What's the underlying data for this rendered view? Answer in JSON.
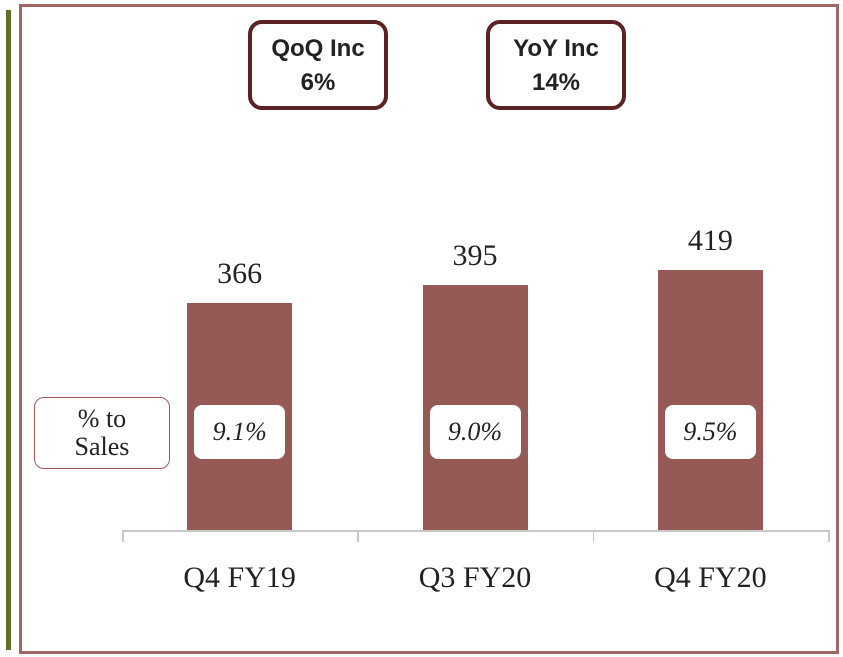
{
  "chart_data": {
    "type": "bar",
    "categories": [
      "Q4 FY19",
      "Q3 FY20",
      "Q4 FY20"
    ],
    "values": [
      366,
      395,
      419
    ],
    "color": "#965a56",
    "ylim": [
      0,
      600
    ],
    "ratio_title": "% to Sales",
    "ratio_labels": [
      "9.1%",
      "9.0%",
      "9.5%"
    ],
    "annotations": [
      {
        "label": "QoQ Inc",
        "value": "6%"
      },
      {
        "label": "YoY Inc",
        "value": "14%"
      }
    ]
  }
}
